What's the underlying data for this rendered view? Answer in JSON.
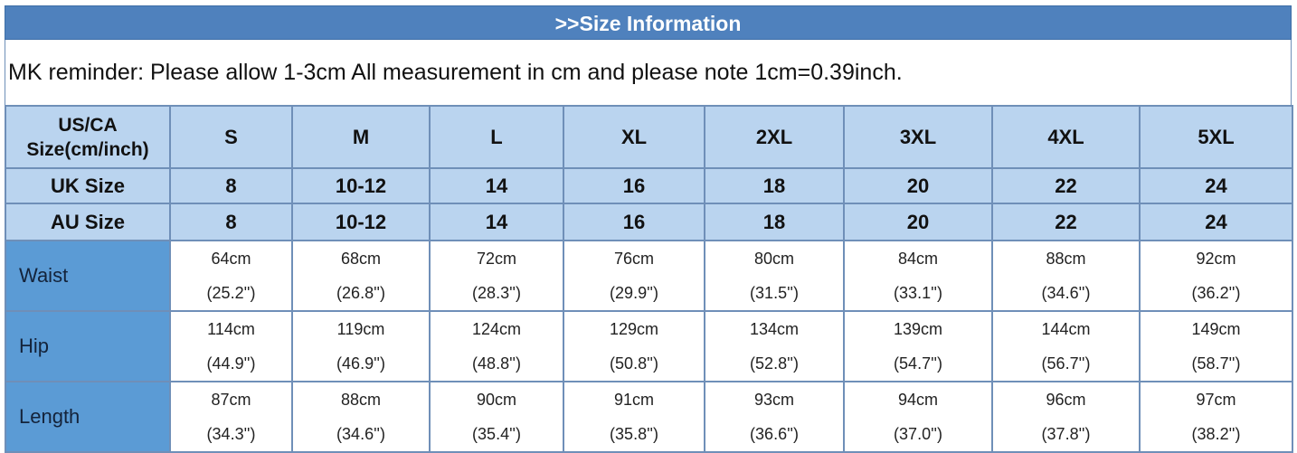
{
  "title": ">>Size Information",
  "reminder": "MK reminder: Please allow 1-3cm All measurement in cm and please note 1cm=0.39inch.",
  "colors": {
    "title_bar": "#4f81bd",
    "header_bg": "#bad4ef",
    "label_bg": "#5b9bd5"
  },
  "header": {
    "label": "US/CA Size(cm/inch)",
    "sizes": [
      "S",
      "M",
      "L",
      "XL",
      "2XL",
      "3XL",
      "4XL",
      "5XL"
    ]
  },
  "uk": {
    "label": "UK Size",
    "values": [
      "8",
      "10-12",
      "14",
      "16",
      "18",
      "20",
      "22",
      "24"
    ]
  },
  "au": {
    "label": "AU Size",
    "values": [
      "8",
      "10-12",
      "14",
      "16",
      "18",
      "20",
      "22",
      "24"
    ]
  },
  "rows": [
    {
      "label": "Waist",
      "cm": [
        "64cm",
        "68cm",
        "72cm",
        "76cm",
        "80cm",
        "84cm",
        "88cm",
        "92cm"
      ],
      "inch": [
        "(25.2'')",
        "(26.8'')",
        "(28.3'')",
        "(29.9'')",
        "(31.5'')",
        "(33.1'')",
        "(34.6'')",
        "(36.2'')"
      ]
    },
    {
      "label": "Hip",
      "cm": [
        "114cm",
        "119cm",
        "124cm",
        "129cm",
        "134cm",
        "139cm",
        "144cm",
        "149cm"
      ],
      "inch": [
        "(44.9'')",
        "(46.9'')",
        "(48.8'')",
        "(50.8'')",
        "(52.8'')",
        "(54.7'')",
        "(56.7'')",
        "(58.7'')"
      ]
    },
    {
      "label": "Length",
      "cm": [
        "87cm",
        "88cm",
        "90cm",
        "91cm",
        "93cm",
        "94cm",
        "96cm",
        "97cm"
      ],
      "inch": [
        "(34.3'')",
        "(34.6'')",
        "(35.4'')",
        "(35.8'')",
        "(36.6'')",
        "(37.0'')",
        "(37.8'')",
        "(38.2'')"
      ]
    }
  ]
}
